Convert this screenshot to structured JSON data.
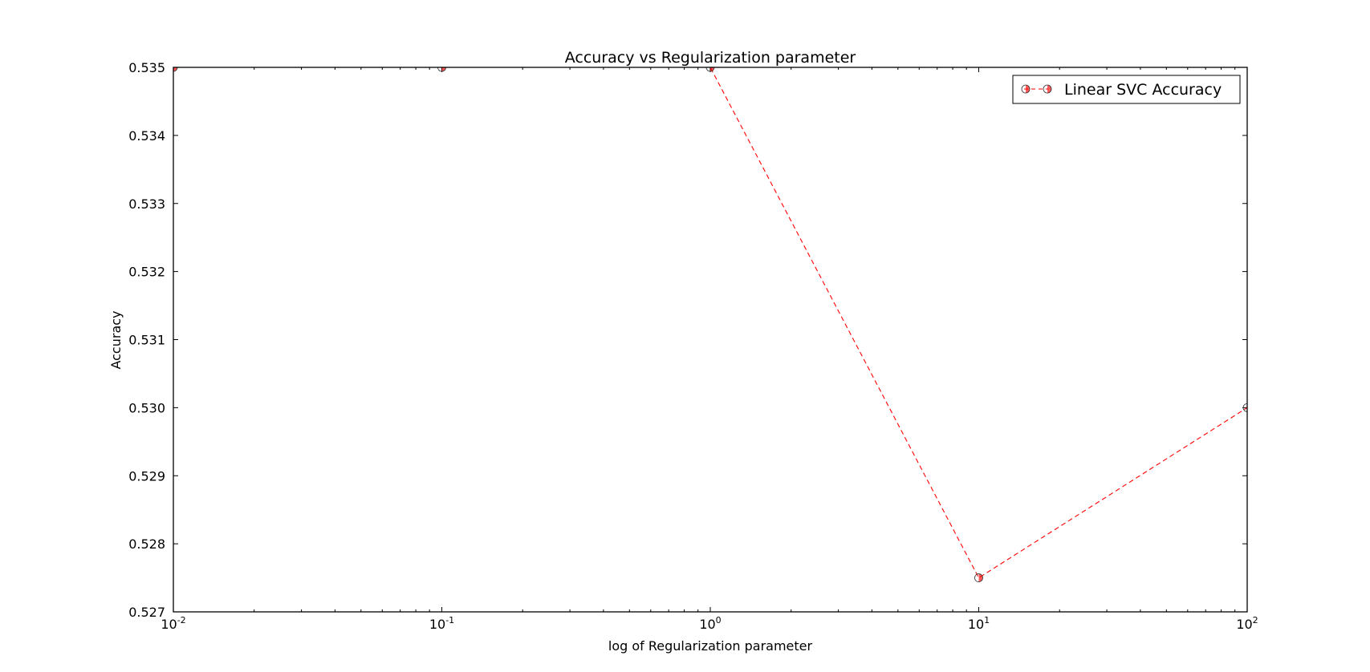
{
  "chart_data": {
    "type": "line",
    "title": "Accuracy vs Regularization parameter",
    "xlabel": "log of Regularization parameter",
    "ylabel": "Accuracy",
    "x_scale": "log",
    "xlim": [
      0.01,
      100
    ],
    "ylim": [
      0.527,
      0.535
    ],
    "grid": false,
    "legend_position": "top-right",
    "x_ticks": [
      {
        "value": 0.01,
        "base": "10",
        "exp": "-2"
      },
      {
        "value": 0.1,
        "base": "10",
        "exp": "-1"
      },
      {
        "value": 1,
        "base": "10",
        "exp": "0"
      },
      {
        "value": 10,
        "base": "10",
        "exp": "1"
      },
      {
        "value": 100,
        "base": "10",
        "exp": "2"
      }
    ],
    "y_ticks": [
      "0.527",
      "0.528",
      "0.529",
      "0.530",
      "0.531",
      "0.532",
      "0.533",
      "0.534",
      "0.535"
    ],
    "series": [
      {
        "name": "Linear SVC Accuracy",
        "x": [
          0.01,
          0.1,
          1,
          10,
          100
        ],
        "y": [
          0.535,
          0.535,
          0.535,
          0.5275,
          0.53
        ],
        "color": "#ff0000",
        "line_style": "dashed",
        "marker": "half-filled circle"
      }
    ]
  }
}
